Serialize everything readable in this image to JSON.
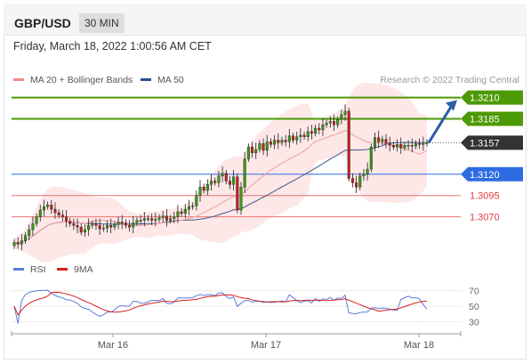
{
  "header": {
    "symbol": "GBP/USD",
    "timeframe": "30 MIN"
  },
  "date_label": "Friday, March 18, 2022 1:00:56 AM CET",
  "legend": {
    "ma_bb": "MA 20 + Bollinger Bands",
    "ma50": "MA 50",
    "research": "Research © 2022 Trading Central"
  },
  "rsi_legend": {
    "rsi": "RSI",
    "ma9": "9MA"
  },
  "colors": {
    "green": "#4c9a05",
    "blue": "#2f6ce4",
    "red": "#e33b3b",
    "dark": "#333333",
    "arrow": "#2a5da8",
    "ma50": "#3b5b8a",
    "rsi": "#5b7fd8",
    "ma9": "#d32020"
  },
  "chart_data": [
    {
      "type": "candlestick",
      "ylim": [
        1.303,
        1.322
      ],
      "price_levels": [
        {
          "label": "1.3210",
          "value": 1.321,
          "kind": "resistance"
        },
        {
          "label": "1.3185",
          "value": 1.3185,
          "kind": "resistance"
        },
        {
          "label": "1.3157",
          "value": 1.3157,
          "kind": "last"
        },
        {
          "label": "1.3120",
          "value": 1.312,
          "kind": "pivot"
        },
        {
          "label": "1.3095",
          "value": 1.3095,
          "kind": "support"
        },
        {
          "label": "1.3070",
          "value": 1.307,
          "kind": "support"
        }
      ],
      "x_ticks": [
        "Mar 16",
        "Mar 17",
        "Mar 18"
      ],
      "close": [
        1.304,
        1.3038,
        1.3042,
        1.3048,
        1.3055,
        1.3062,
        1.307,
        1.3078,
        1.3082,
        1.3084,
        1.3079,
        1.3075,
        1.3072,
        1.307,
        1.3065,
        1.3062,
        1.306,
        1.3058,
        1.3052,
        1.3055,
        1.306,
        1.3062,
        1.306,
        1.3056,
        1.3057,
        1.306,
        1.3058,
        1.3061,
        1.3064,
        1.3063,
        1.306,
        1.3058,
        1.3063,
        1.3066,
        1.3066,
        1.3068,
        1.3068,
        1.3066,
        1.3067,
        1.3069,
        1.3071,
        1.3066,
        1.3068,
        1.307,
        1.3076,
        1.3074,
        1.3079,
        1.3082,
        1.3083,
        1.3095,
        1.3105,
        1.3101,
        1.3108,
        1.3112,
        1.311,
        1.3118,
        1.3121,
        1.3112,
        1.3108,
        1.3117,
        1.3078,
        1.3105,
        1.3138,
        1.3152,
        1.3145,
        1.3149,
        1.3156,
        1.3148,
        1.3158,
        1.3155,
        1.316,
        1.3157,
        1.316,
        1.3158,
        1.3165,
        1.316,
        1.3164,
        1.3166,
        1.3164,
        1.317,
        1.3168,
        1.3174,
        1.3172,
        1.3178,
        1.318,
        1.3182,
        1.3178,
        1.3184,
        1.319,
        1.3194,
        1.3115,
        1.311,
        1.3105,
        1.3118,
        1.312,
        1.3126,
        1.3152,
        1.3163,
        1.3158,
        1.3161,
        1.3156,
        1.3154,
        1.3152,
        1.3155,
        1.3151,
        1.3154,
        1.3154,
        1.3153,
        1.3156,
        1.3155,
        1.3156,
        1.3157
      ]
    },
    {
      "type": "line",
      "ylim": [
        20,
        80
      ],
      "y_ticks": [
        70,
        50,
        30
      ]
    }
  ]
}
